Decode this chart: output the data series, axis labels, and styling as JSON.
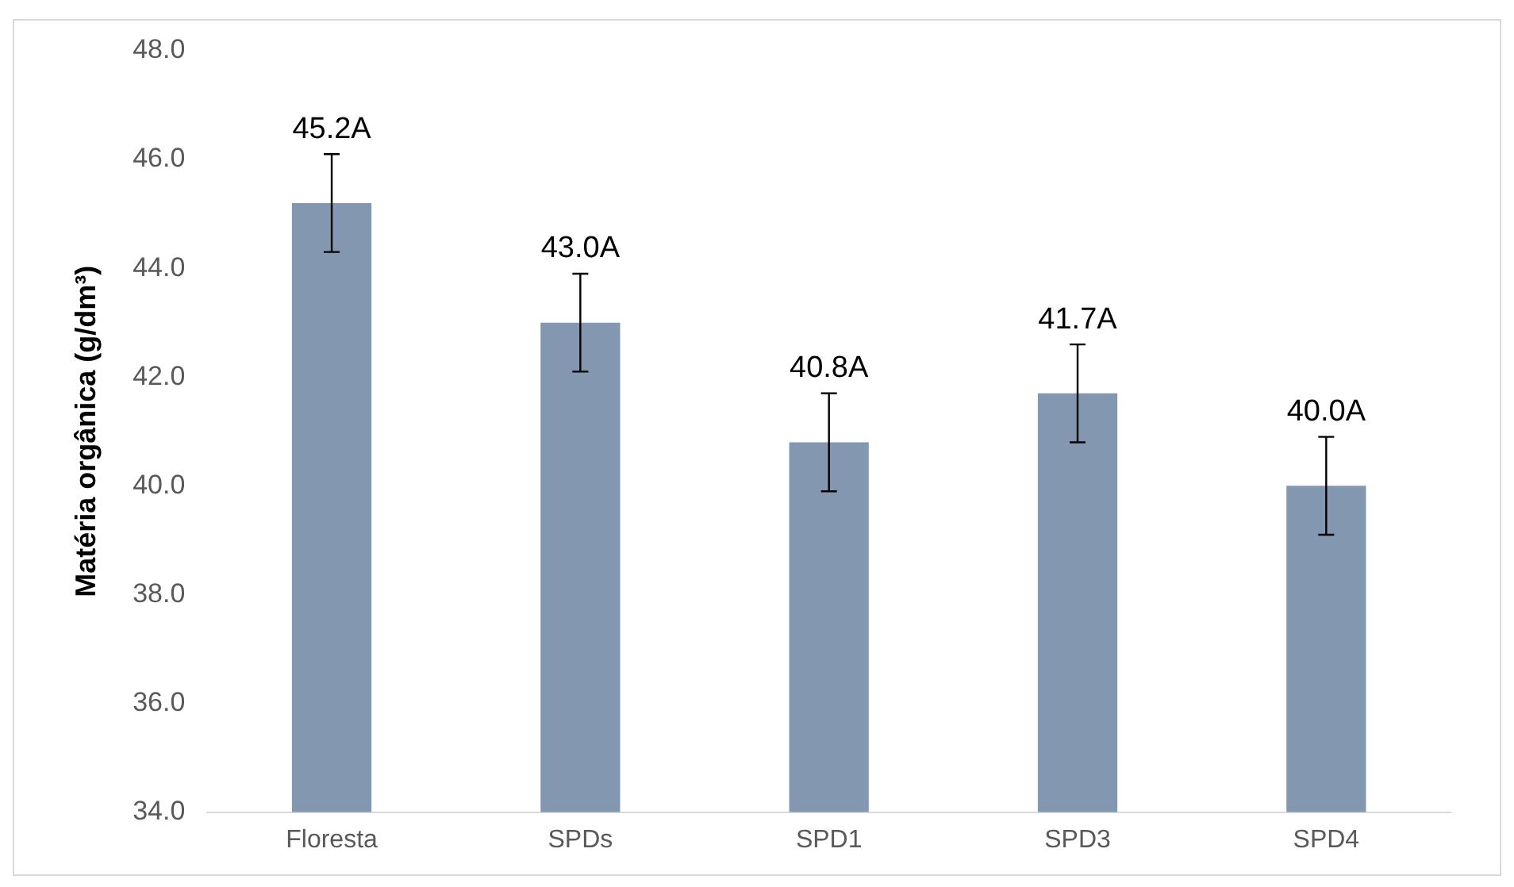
{
  "chart_data": {
    "type": "bar",
    "ylabel": "Matéria orgânica (g/dm³)",
    "categories": [
      "Floresta",
      "SPDs",
      "SPD1",
      "SPD3",
      "SPD4"
    ],
    "values": [
      45.2,
      43.0,
      40.8,
      41.7,
      40.0
    ],
    "errors": [
      0.9,
      0.9,
      0.9,
      0.9,
      0.9
    ],
    "value_labels": [
      "45.2A",
      "43.0A",
      "40.8A",
      "41.7A",
      "40.0A"
    ],
    "color": "#8497b0",
    "ylim": [
      34,
      48
    ],
    "yticks": [
      {
        "value": 34,
        "label": "34.0"
      },
      {
        "value": 36,
        "label": "36.0"
      },
      {
        "value": 38,
        "label": "38.0"
      },
      {
        "value": 40,
        "label": "40.0"
      },
      {
        "value": 42,
        "label": "42.0"
      },
      {
        "value": 44,
        "label": "44.0"
      },
      {
        "value": 46,
        "label": "46.0"
      },
      {
        "value": 48,
        "label": "48.0"
      }
    ],
    "grid": false,
    "legend": false
  }
}
